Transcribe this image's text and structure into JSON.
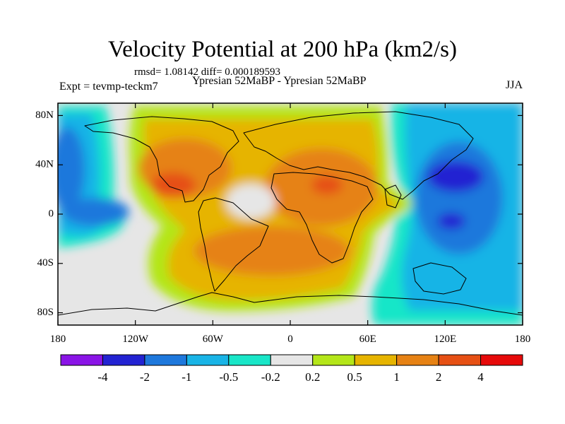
{
  "title": "Velocity Potential at 200 hPa (km2/s)",
  "stats": "rmsd= 1.08142 diff= 0.000189593",
  "subtitle": "Ypresian  52MaBP - Ypresian  52MaBP",
  "expt": "Expt = tevmp-teckm7",
  "season": "JJA",
  "axes": {
    "lat_ticks": [
      {
        "label": "80N",
        "lat": 80
      },
      {
        "label": "40N",
        "lat": 40
      },
      {
        "label": "0",
        "lat": 0
      },
      {
        "label": "40S",
        "lat": -40
      },
      {
        "label": "80S",
        "lat": -80
      }
    ],
    "lon_ticks": [
      {
        "label": "180",
        "lon": -180
      },
      {
        "label": "120W",
        "lon": -120
      },
      {
        "label": "60W",
        "lon": -60
      },
      {
        "label": "0",
        "lon": 0
      },
      {
        "label": "60E",
        "lon": 60
      },
      {
        "label": "120E",
        "lon": 120
      },
      {
        "label": "180",
        "lon": 180
      }
    ],
    "lon_range": [
      -180,
      180
    ],
    "lat_range": [
      -90,
      90
    ]
  },
  "colorbar": {
    "levels": [
      "-4",
      "-2",
      "-1",
      "-0.5",
      "-0.2",
      "0.2",
      "0.5",
      "1",
      "2",
      "4"
    ],
    "colors": [
      "#8a14e6",
      "#2323d2",
      "#1e78dc",
      "#19b4e6",
      "#19e6c8",
      "#e6e6e6",
      "#b4e619",
      "#e6b400",
      "#e68214",
      "#e65014",
      "#e60a0a"
    ]
  },
  "field_features": [
    {
      "name": "positive-center-east-pacific",
      "lon": -95,
      "lat": 18,
      "value": 3
    },
    {
      "name": "positive-center-north-africa",
      "lon": 30,
      "lat": 18,
      "value": 3
    },
    {
      "name": "positive-lobe-south-atlantic",
      "lon": -40,
      "lat": -32,
      "value": 1.6
    },
    {
      "name": "negative-center-west-pacific",
      "lon": 125,
      "lat": 20,
      "value": -2.6
    },
    {
      "name": "negative-center-maritime",
      "lon": 122,
      "lat": -8,
      "value": -2.3
    },
    {
      "name": "negative-center-central-pacific",
      "lon": -138,
      "lat": -5,
      "value": -1.5
    }
  ]
}
